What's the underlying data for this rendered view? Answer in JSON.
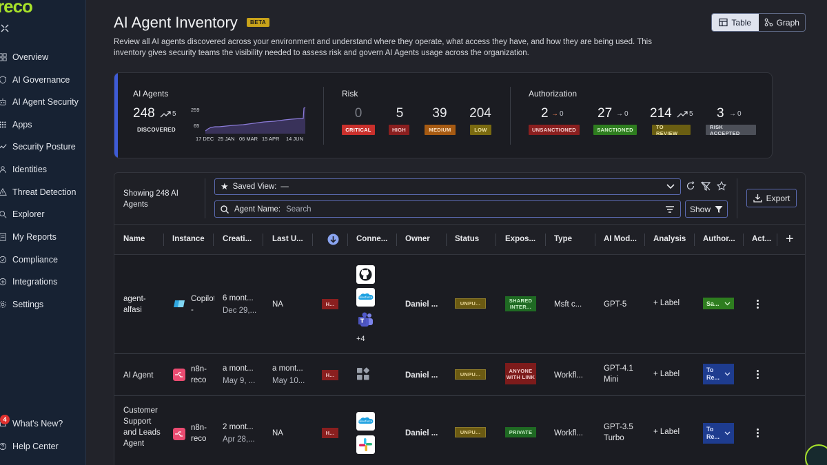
{
  "app": {
    "logo": "reco"
  },
  "sidebar": {
    "items": [
      {
        "label": "Overview",
        "icon": "grid-icon"
      },
      {
        "label": "AI Governance",
        "icon": "shield-icon"
      },
      {
        "label": "AI Agent Security",
        "icon": "robot-icon"
      },
      {
        "label": "Apps",
        "icon": "apps-icon"
      },
      {
        "label": "Security Posture",
        "icon": "posture-icon"
      },
      {
        "label": "Identities",
        "icon": "user-icon"
      },
      {
        "label": "Threat Detection",
        "icon": "threat-icon"
      },
      {
        "label": "Explorer",
        "icon": "explorer-icon"
      },
      {
        "label": "My Reports",
        "icon": "reports-icon"
      },
      {
        "label": "Compliance",
        "icon": "compliance-icon"
      },
      {
        "label": "Integrations",
        "icon": "integrations-icon"
      },
      {
        "label": "Settings",
        "icon": "gear-icon"
      }
    ],
    "whats_new": "What's New?",
    "whats_new_count": "4",
    "help": "Help Center"
  },
  "header": {
    "title": "AI Agent Inventory",
    "beta": "BETA",
    "description": "Review all AI agents discovered across your environment and understand where they operate, what access they have, and how they are being used. This inventory gives security teams the visibility needed to assess risk and govern AI Agents usage across the organization.",
    "view_table": "Table",
    "view_graph": "Graph"
  },
  "stats": {
    "agents": {
      "title": "AI Agents",
      "value": "248",
      "trend": "5",
      "label": "DISCOVERED",
      "y_max": "259",
      "y_min": "65",
      "x_ticks": [
        "17 DEC",
        "25 JAN",
        "06 MAR",
        "15 APR",
        "14 JUN"
      ]
    },
    "risk": {
      "title": "Risk",
      "items": [
        {
          "value": "0",
          "label": "CRITICAL"
        },
        {
          "value": "5",
          "label": "HIGH"
        },
        {
          "value": "39",
          "label": "MEDIUM"
        },
        {
          "value": "204",
          "label": "LOW"
        }
      ]
    },
    "authorization": {
      "title": "Authorization",
      "items": [
        {
          "value": "2",
          "trend": "0",
          "label": "UNSANCTIONED"
        },
        {
          "value": "27",
          "trend": "0",
          "label": "SANCTIONED"
        },
        {
          "value": "214",
          "trend": "5",
          "label": "TO REVIEW"
        },
        {
          "value": "3",
          "trend": "0",
          "label": "RISK ACCEPTED"
        }
      ]
    }
  },
  "toolbar": {
    "showing": "Showing 248 AI Agents",
    "saved_view_label": "Saved View:",
    "saved_view_value": "—",
    "search_label": "Agent Name:",
    "search_placeholder": "Search",
    "show": "Show",
    "export": "Export"
  },
  "table": {
    "columns": [
      "Name",
      "Instance",
      "Creati...",
      "Last U...",
      "Conne...",
      "Owner",
      "Status",
      "Expos...",
      "Type",
      "AI Mod...",
      "Analysis",
      "Author...",
      "Act..."
    ],
    "rows": [
      {
        "name": "agent-alfasi",
        "instance": "Copilot - Demo",
        "created": "6 mont...",
        "created_date": "Dec 29,...",
        "last_used": "NA",
        "last_used_date": "",
        "risk": "H...",
        "connectors_more": "+4",
        "owner": "Daniel ...",
        "status": "UNPU...",
        "exposure": "SHARED INTER...",
        "type": "Msft c...",
        "model": "GPT-5",
        "analysis": "+ Label",
        "auth": "Sa..."
      },
      {
        "name": "AI Agent",
        "instance": "n8n-reco",
        "created": "a mont...",
        "created_date": "May 9, ...",
        "last_used": "a mont...",
        "last_used_date": "May 10...",
        "risk": "H...",
        "owner": "Daniel ...",
        "status": "UNPU...",
        "exposure": "ANYONE WITH LINK",
        "type": "Workfl...",
        "model": "GPT-4.1 Mini",
        "analysis": "+ Label",
        "auth": "To Re..."
      },
      {
        "name": "Customer Support and Leads Agent",
        "instance": "n8n-reco",
        "created": "2 mont...",
        "created_date": "Apr 28,...",
        "last_used": "NA",
        "last_used_date": "",
        "risk": "H...",
        "owner": "Daniel ...",
        "status": "UNPU...",
        "exposure": "PRIVATE",
        "type": "Workfl...",
        "model": "GPT-3.5 Turbo",
        "analysis": "+ Label",
        "auth": "To Re..."
      }
    ]
  },
  "colors": {
    "sidebar_bg": "#172233",
    "accent": "#a8e22a",
    "critical": "#c9302c",
    "high": "#8a1f1f",
    "medium": "#a65a12",
    "low": "#7a6a10",
    "sanctioned": "#2e7d1f",
    "to_review": "#6a5e12"
  }
}
